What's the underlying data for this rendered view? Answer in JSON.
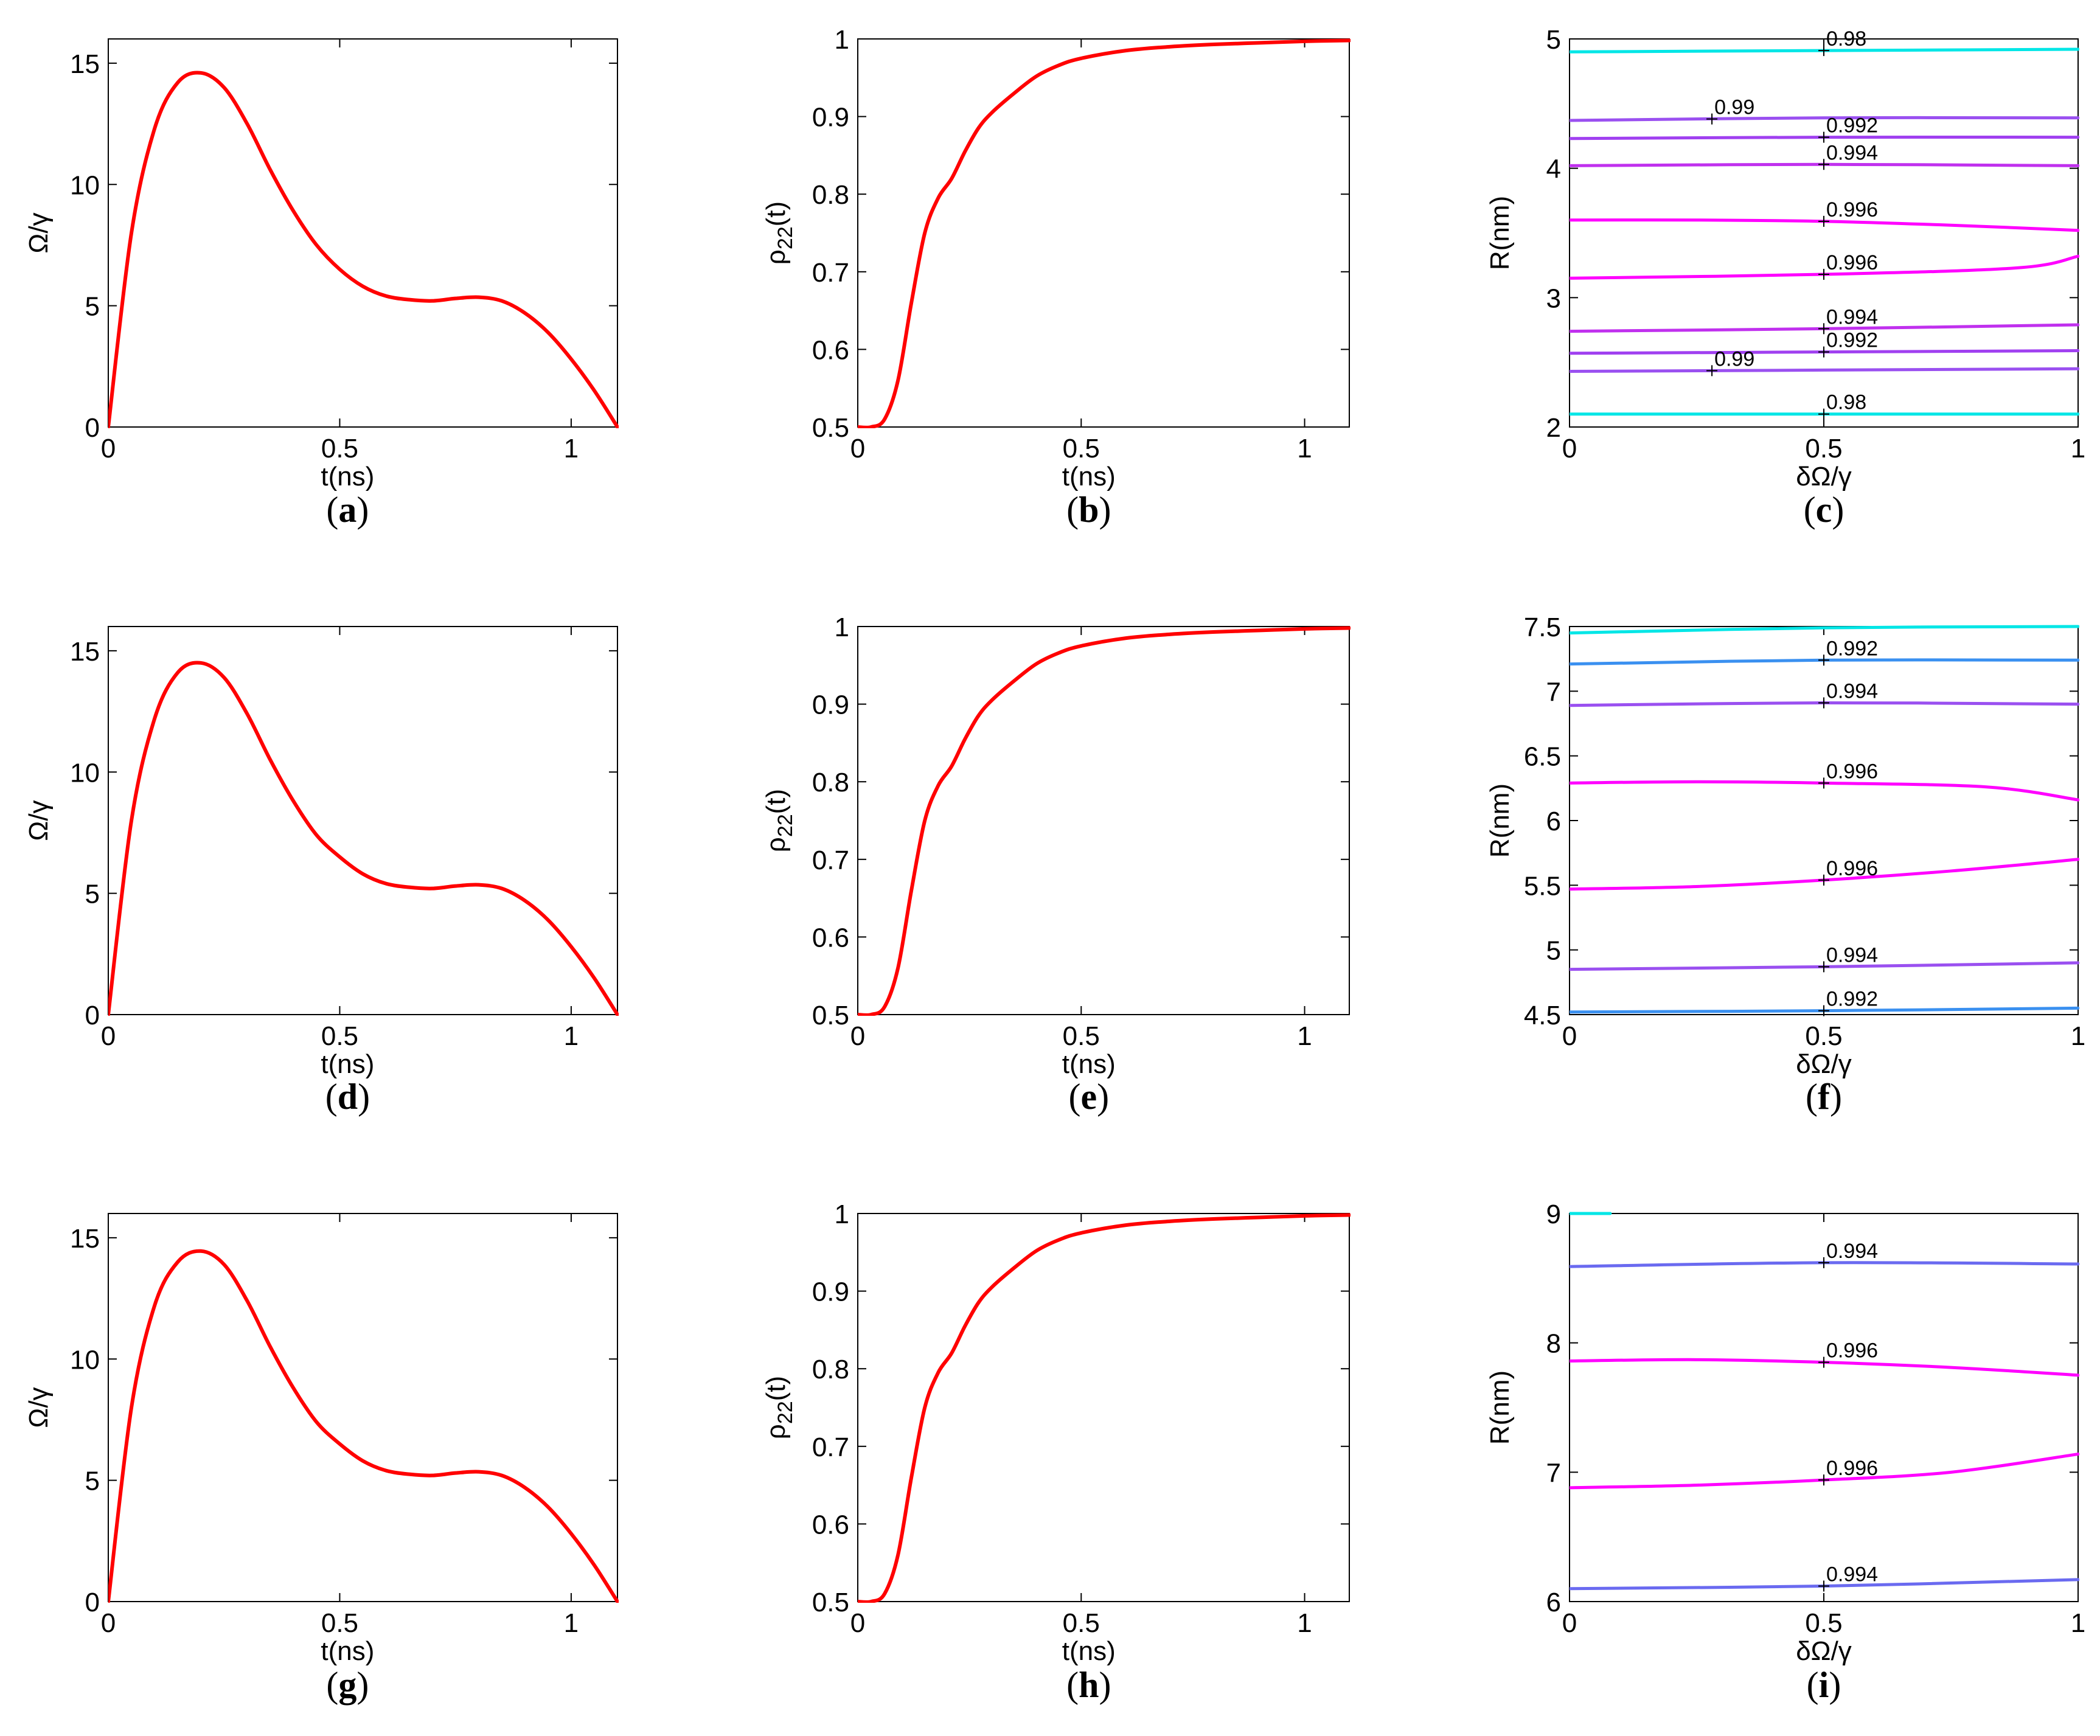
{
  "chart_data": [
    {
      "id": "a",
      "type": "line",
      "panel_label": "a",
      "xlabel": "t(ns)",
      "ylabel": "Ω/γ",
      "xlim": [
        0,
        1.1
      ],
      "ylim": [
        0,
        16
      ],
      "xticks": [
        "0",
        "0.5",
        "1"
      ],
      "yticks": [
        "0",
        "5",
        "10",
        "15"
      ],
      "series": [
        {
          "name": "Omega",
          "color": "#ff0000",
          "x": [
            0,
            0.05,
            0.1,
            0.15,
            0.2,
            0.25,
            0.3,
            0.35,
            0.4,
            0.45,
            0.5,
            0.55,
            0.6,
            0.65,
            0.7,
            0.75,
            0.8,
            0.85,
            0.9,
            0.95,
            1.0,
            1.05,
            1.1
          ],
          "y": [
            0,
            8.0,
            12.3,
            14.2,
            14.6,
            14.0,
            12.5,
            10.6,
            8.9,
            7.5,
            6.5,
            5.8,
            5.4,
            5.25,
            5.2,
            5.3,
            5.35,
            5.2,
            4.7,
            3.9,
            2.8,
            1.5,
            0
          ]
        }
      ]
    },
    {
      "id": "b",
      "type": "line",
      "panel_label": "b",
      "xlabel": "t(ns)",
      "ylabel": "ρ22(t)",
      "xlim": [
        0,
        1.1
      ],
      "ylim": [
        0.5,
        1.0
      ],
      "xticks": [
        "0",
        "0.5",
        "1"
      ],
      "yticks": [
        "0.5",
        "0.6",
        "0.7",
        "0.8",
        "0.9",
        "1"
      ],
      "series": [
        {
          "name": "rho22",
          "color": "#ff0000",
          "x": [
            0,
            0.03,
            0.06,
            0.09,
            0.12,
            0.15,
            0.18,
            0.21,
            0.24,
            0.27,
            0.3,
            0.35,
            0.4,
            0.45,
            0.5,
            0.6,
            0.7,
            0.8,
            0.9,
            1.0,
            1.1
          ],
          "y": [
            0.5,
            0.5,
            0.51,
            0.56,
            0.66,
            0.75,
            0.795,
            0.82,
            0.855,
            0.885,
            0.905,
            0.93,
            0.952,
            0.966,
            0.975,
            0.985,
            0.99,
            0.993,
            0.995,
            0.997,
            0.998
          ]
        }
      ]
    },
    {
      "id": "c",
      "type": "line",
      "panel_label": "c",
      "xlabel": "δΩ/γ",
      "ylabel": "R(nm)",
      "xlim": [
        0,
        1
      ],
      "ylim": [
        2,
        5
      ],
      "xticks": [
        "0",
        "0.5",
        "1"
      ],
      "yticks": [
        "2",
        "3",
        "4",
        "5"
      ],
      "series": [
        {
          "label": "0.98",
          "color": "#00e6e6",
          "x": [
            0,
            0.5,
            1
          ],
          "y": [
            4.9,
            4.91,
            4.92
          ],
          "label_x": 0.5
        },
        {
          "label": "0.99",
          "color": "#9a50f0",
          "x": [
            0,
            0.5,
            1
          ],
          "y": [
            4.37,
            4.39,
            4.39
          ],
          "label_x": 0.28
        },
        {
          "label": "0.992",
          "color": "#a040f0",
          "x": [
            0,
            0.5,
            1
          ],
          "y": [
            4.23,
            4.24,
            4.24
          ],
          "label_x": 0.5
        },
        {
          "label": "0.994",
          "color": "#c030ee",
          "x": [
            0,
            0.5,
            1
          ],
          "y": [
            4.02,
            4.03,
            4.02
          ],
          "label_x": 0.5
        },
        {
          "label": "0.996",
          "color": "#ff00ff",
          "x": [
            0,
            0.25,
            0.5,
            0.75,
            1
          ],
          "y": [
            3.6,
            3.6,
            3.59,
            3.56,
            3.52
          ],
          "label_x": 0.5
        },
        {
          "label": "0.996",
          "color": "#ff00ff",
          "x": [
            0,
            0.5,
            0.88,
            1
          ],
          "y": [
            3.15,
            3.18,
            3.23,
            3.32
          ],
          "label_x": 0.5
        },
        {
          "label": "0.994",
          "color": "#c030ee",
          "x": [
            0,
            0.5,
            1
          ],
          "y": [
            2.74,
            2.76,
            2.79
          ],
          "label_x": 0.5
        },
        {
          "label": "0.992",
          "color": "#a040f0",
          "x": [
            0,
            0.5,
            1
          ],
          "y": [
            2.57,
            2.58,
            2.59
          ],
          "label_x": 0.5
        },
        {
          "label": "0.99",
          "color": "#9a50f0",
          "x": [
            0,
            0.5,
            1
          ],
          "y": [
            2.43,
            2.44,
            2.45
          ],
          "label_x": 0.28
        },
        {
          "label": "0.98",
          "color": "#00e6e6",
          "x": [
            0,
            0.5,
            1
          ],
          "y": [
            2.1,
            2.1,
            2.1
          ],
          "label_x": 0.5
        }
      ]
    },
    {
      "id": "d",
      "type": "line",
      "panel_label": "d",
      "xlabel": "t(ns)",
      "ylabel": "Ω/γ",
      "xlim": [
        0,
        1.1
      ],
      "ylim": [
        0,
        16
      ],
      "xticks": [
        "0",
        "0.5",
        "1"
      ],
      "yticks": [
        "0",
        "5",
        "10",
        "15"
      ],
      "series": [
        {
          "name": "Omega",
          "color": "#ff0000",
          "x": [
            0,
            0.05,
            0.1,
            0.15,
            0.2,
            0.25,
            0.3,
            0.35,
            0.4,
            0.45,
            0.5,
            0.55,
            0.6,
            0.65,
            0.7,
            0.75,
            0.8,
            0.85,
            0.9,
            0.95,
            1.0,
            1.05,
            1.1
          ],
          "y": [
            0,
            8.0,
            12.2,
            14.1,
            14.5,
            13.9,
            12.4,
            10.5,
            8.8,
            7.4,
            6.5,
            5.8,
            5.4,
            5.25,
            5.2,
            5.3,
            5.35,
            5.2,
            4.7,
            3.9,
            2.8,
            1.5,
            0
          ]
        }
      ]
    },
    {
      "id": "e",
      "type": "line",
      "panel_label": "e",
      "xlabel": "t(ns)",
      "ylabel": "ρ22(t)",
      "xlim": [
        0,
        1.1
      ],
      "ylim": [
        0.5,
        1.0
      ],
      "xticks": [
        "0",
        "0.5",
        "1"
      ],
      "yticks": [
        "0.5",
        "0.6",
        "0.7",
        "0.8",
        "0.9",
        "1"
      ],
      "series": [
        {
          "name": "rho22",
          "color": "#ff0000",
          "x": [
            0,
            0.03,
            0.06,
            0.09,
            0.12,
            0.15,
            0.18,
            0.21,
            0.24,
            0.27,
            0.3,
            0.35,
            0.4,
            0.45,
            0.5,
            0.6,
            0.7,
            0.8,
            0.9,
            1.0,
            1.1
          ],
          "y": [
            0.5,
            0.5,
            0.51,
            0.56,
            0.66,
            0.75,
            0.795,
            0.82,
            0.855,
            0.885,
            0.905,
            0.93,
            0.952,
            0.966,
            0.975,
            0.985,
            0.99,
            0.993,
            0.995,
            0.997,
            0.998
          ]
        }
      ]
    },
    {
      "id": "f",
      "type": "line",
      "panel_label": "f",
      "xlabel": "δΩ/γ",
      "ylabel": "R(nm)",
      "xlim": [
        0,
        1
      ],
      "ylim": [
        4.5,
        7.5
      ],
      "xticks": [
        "0",
        "0.5",
        "1"
      ],
      "yticks": [
        "4.5",
        "5",
        "5.5",
        "6",
        "6.5",
        "7",
        "7.5"
      ],
      "series": [
        {
          "label": "",
          "color": "#00e6e6",
          "x": [
            0,
            0.5,
            1
          ],
          "y": [
            7.45,
            7.49,
            7.5
          ],
          "label_x": null
        },
        {
          "label": "0.992",
          "color": "#3a90f0",
          "x": [
            0,
            0.5,
            1
          ],
          "y": [
            7.21,
            7.24,
            7.24
          ],
          "label_x": 0.5
        },
        {
          "label": "0.994",
          "color": "#9a50f0",
          "x": [
            0,
            0.5,
            1
          ],
          "y": [
            6.89,
            6.91,
            6.9
          ],
          "label_x": 0.5
        },
        {
          "label": "0.996",
          "color": "#ff00ff",
          "x": [
            0,
            0.25,
            0.5,
            0.82,
            1
          ],
          "y": [
            6.29,
            6.3,
            6.29,
            6.26,
            6.16
          ],
          "label_x": 0.5
        },
        {
          "label": "0.996",
          "color": "#ff00ff",
          "x": [
            0,
            0.25,
            0.5,
            0.75,
            1
          ],
          "y": [
            5.47,
            5.49,
            5.54,
            5.61,
            5.7
          ],
          "label_x": 0.5
        },
        {
          "label": "0.994",
          "color": "#9a50f0",
          "x": [
            0,
            0.5,
            1
          ],
          "y": [
            4.85,
            4.87,
            4.9
          ],
          "label_x": 0.5
        },
        {
          "label": "0.992",
          "color": "#3a90f0",
          "x": [
            0,
            0.5,
            1
          ],
          "y": [
            4.52,
            4.53,
            4.55
          ],
          "label_x": 0.5
        }
      ]
    },
    {
      "id": "g",
      "type": "line",
      "panel_label": "g",
      "xlabel": "t(ns)",
      "ylabel": "Ω/γ",
      "xlim": [
        0,
        1.1
      ],
      "ylim": [
        0,
        16
      ],
      "xticks": [
        "0",
        "0.5",
        "1"
      ],
      "yticks": [
        "0",
        "5",
        "10",
        "15"
      ],
      "series": [
        {
          "name": "Omega",
          "color": "#ff0000",
          "x": [
            0,
            0.05,
            0.1,
            0.15,
            0.2,
            0.25,
            0.3,
            0.35,
            0.4,
            0.45,
            0.5,
            0.55,
            0.6,
            0.65,
            0.7,
            0.75,
            0.8,
            0.85,
            0.9,
            0.95,
            1.0,
            1.05,
            1.1
          ],
          "y": [
            0,
            8.0,
            12.2,
            14.0,
            14.45,
            13.9,
            12.4,
            10.5,
            8.8,
            7.4,
            6.5,
            5.8,
            5.4,
            5.25,
            5.2,
            5.3,
            5.35,
            5.2,
            4.7,
            3.9,
            2.8,
            1.5,
            0
          ]
        }
      ]
    },
    {
      "id": "h",
      "type": "line",
      "panel_label": "h",
      "xlabel": "t(ns)",
      "ylabel": "ρ22(t)",
      "xlim": [
        0,
        1.1
      ],
      "ylim": [
        0.5,
        1.0
      ],
      "xticks": [
        "0",
        "0.5",
        "1"
      ],
      "yticks": [
        "0.5",
        "0.6",
        "0.7",
        "0.8",
        "0.9",
        "1"
      ],
      "series": [
        {
          "name": "rho22",
          "color": "#ff0000",
          "x": [
            0,
            0.03,
            0.06,
            0.09,
            0.12,
            0.15,
            0.18,
            0.21,
            0.24,
            0.27,
            0.3,
            0.35,
            0.4,
            0.45,
            0.5,
            0.6,
            0.7,
            0.8,
            0.9,
            1.0,
            1.1
          ],
          "y": [
            0.5,
            0.5,
            0.51,
            0.56,
            0.66,
            0.75,
            0.795,
            0.82,
            0.855,
            0.885,
            0.905,
            0.93,
            0.952,
            0.966,
            0.975,
            0.985,
            0.99,
            0.993,
            0.995,
            0.997,
            0.998
          ]
        }
      ]
    },
    {
      "id": "i",
      "type": "line",
      "panel_label": "i",
      "xlabel": "δΩ/γ",
      "ylabel": "R(nm)",
      "xlim": [
        0,
        1
      ],
      "ylim": [
        6,
        9
      ],
      "xticks": [
        "0",
        "0.5",
        "1"
      ],
      "yticks": [
        "6",
        "7",
        "8",
        "9"
      ],
      "series": [
        {
          "label": "",
          "color": "#00e6e6",
          "x": [
            0,
            0.08
          ],
          "y": [
            9.0,
            9.0
          ],
          "label_x": null
        },
        {
          "label": "0.994",
          "color": "#6a6af0",
          "x": [
            0,
            0.5,
            1
          ],
          "y": [
            8.59,
            8.62,
            8.61
          ],
          "label_x": 0.5
        },
        {
          "label": "0.996",
          "color": "#ff00ff",
          "x": [
            0,
            0.25,
            0.5,
            0.75,
            1
          ],
          "y": [
            7.86,
            7.87,
            7.85,
            7.81,
            7.75
          ],
          "label_x": 0.5
        },
        {
          "label": "0.996",
          "color": "#ff00ff",
          "x": [
            0,
            0.25,
            0.5,
            0.75,
            1
          ],
          "y": [
            6.88,
            6.9,
            6.94,
            7.0,
            7.14
          ],
          "label_x": 0.5
        },
        {
          "label": "0.994",
          "color": "#6a6af0",
          "x": [
            0,
            0.5,
            1
          ],
          "y": [
            6.1,
            6.12,
            6.17
          ],
          "label_x": 0.5
        }
      ]
    }
  ]
}
